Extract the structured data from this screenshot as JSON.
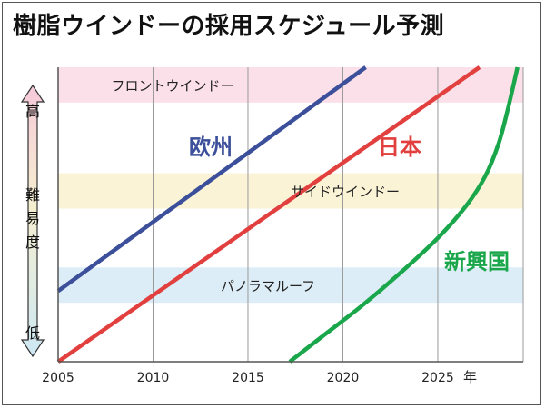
{
  "title": "樹脂ウインドーの採用スケジュール予測",
  "chart_data": {
    "type": "line",
    "title": "樹脂ウインドーの採用スケジュール予測",
    "xlabel": "年",
    "ylabel": "難易度",
    "x_unit": "年",
    "xlim": [
      2005,
      2029.5
    ],
    "ylim": [
      0,
      100
    ],
    "x_ticks": [
      2005,
      2010,
      2015,
      2020,
      2025
    ],
    "x_tick_labels": [
      "2005",
      "2010",
      "2015",
      "2020",
      "2025"
    ],
    "y_axis_high": "高",
    "y_axis_low": "低",
    "y_axis_word": "難易度",
    "bands": [
      {
        "name": "フロントウインドー",
        "y_range": [
          88,
          100
        ],
        "color": "#fbe0ea"
      },
      {
        "name": "サイドウインドー",
        "y_range": [
          52,
          64
        ],
        "color": "#fbf3d6"
      },
      {
        "name": "パノラマルーフ",
        "y_range": [
          20,
          32
        ],
        "color": "#dcedf7"
      }
    ],
    "series": [
      {
        "name": "欧州",
        "color": "#3c4f9a",
        "x": [
          2005,
          2021.2
        ],
        "y": [
          24,
          100
        ]
      },
      {
        "name": "日本",
        "color": "#e2403f",
        "x": [
          2005,
          2027.2
        ],
        "y": [
          0,
          100
        ]
      },
      {
        "name": "新興国",
        "color": "#1aa64a",
        "x": [
          2017.2,
          2019,
          2021,
          2023,
          2025,
          2026.5,
          2027.5,
          2028.2,
          2028.7,
          2029.2
        ],
        "y": [
          0,
          9,
          19,
          30,
          42,
          53,
          63,
          74,
          86,
          100
        ]
      }
    ]
  }
}
